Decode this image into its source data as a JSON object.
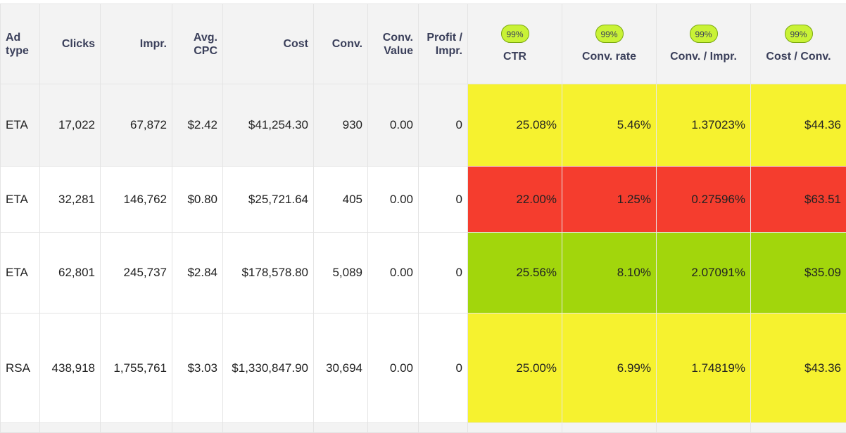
{
  "columns": {
    "ad_type": "Ad type",
    "clicks": "Clicks",
    "impr": "Impr.",
    "avg_cpc": "Avg. CPC",
    "cost": "Cost",
    "conv": "Conv.",
    "conv_value": "Conv. Value",
    "profit_impr": "Profit / Impr.",
    "ctr": "CTR",
    "conv_rate": "Conv. rate",
    "conv_impr": "Conv. / Impr.",
    "cost_conv": "Cost / Conv."
  },
  "badges": {
    "ctr": "99%",
    "conv_rate": "99%",
    "conv_impr": "99%",
    "cost_conv": "99%"
  },
  "colors": {
    "yellow": "#f6f22f",
    "red": "#f53d2e",
    "green": "#a2d60c",
    "badge": "#c9f236"
  },
  "rows": [
    {
      "ad_type": "ETA",
      "clicks": "17,022",
      "impr": "67,872",
      "avg_cpc": "$2.42",
      "cost": "$41,254.30",
      "conv": "930",
      "conv_value": "0.00",
      "profit_impr": "0",
      "ctr": "25.08%",
      "conv_rate": "5.46%",
      "conv_impr": "1.37023%",
      "cost_conv": "$44.36",
      "highlight": "yellow"
    },
    {
      "ad_type": "ETA",
      "clicks": "32,281",
      "impr": "146,762",
      "avg_cpc": "$0.80",
      "cost": "$25,721.64",
      "conv": "405",
      "conv_value": "0.00",
      "profit_impr": "0",
      "ctr": "22.00%",
      "conv_rate": "1.25%",
      "conv_impr": "0.27596%",
      "cost_conv": "$63.51",
      "highlight": "red"
    },
    {
      "ad_type": "ETA",
      "clicks": "62,801",
      "impr": "245,737",
      "avg_cpc": "$2.84",
      "cost": "$178,578.80",
      "conv": "5,089",
      "conv_value": "0.00",
      "profit_impr": "0",
      "ctr": "25.56%",
      "conv_rate": "8.10%",
      "conv_impr": "2.07091%",
      "cost_conv": "$35.09",
      "highlight": "green"
    },
    {
      "ad_type": "RSA",
      "clicks": "438,918",
      "impr": "1,755,761",
      "avg_cpc": "$3.03",
      "cost": "$1,330,847.90",
      "conv": "30,694",
      "conv_value": "0.00",
      "profit_impr": "0",
      "ctr": "25.00%",
      "conv_rate": "6.99%",
      "conv_impr": "1.74819%",
      "cost_conv": "$43.36",
      "highlight": "yellow"
    }
  ]
}
